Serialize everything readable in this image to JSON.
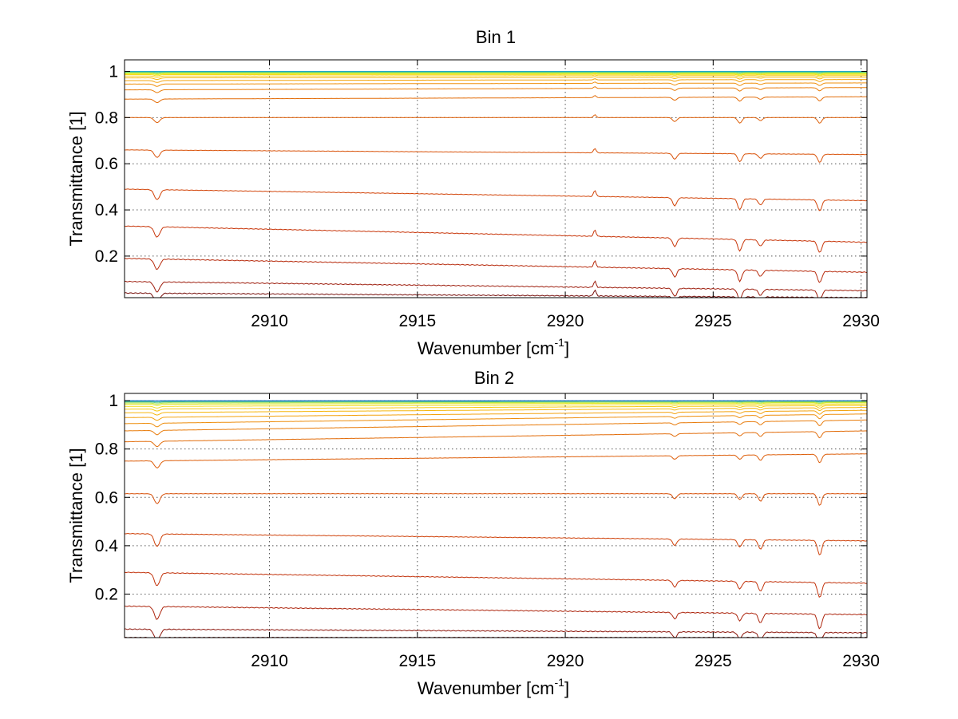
{
  "chart_data": [
    {
      "type": "line",
      "title": "Bin 1",
      "xlabel": "Wavenumber [cm",
      "xlabel_sup": "-1",
      "xlabel_tail": "]",
      "ylabel": "Transmittance [1]",
      "xlim": [
        2905.1,
        2930.2
      ],
      "ylim": [
        0.02,
        1.05
      ],
      "xticks": [
        2910,
        2915,
        2920,
        2925,
        2930
      ],
      "xtick_labels": [
        "2910",
        "2915",
        "2920",
        "2925",
        "2930"
      ],
      "yticks": [
        0.2,
        0.4,
        0.6,
        0.8,
        1
      ],
      "ytick_labels": [
        "0.2",
        "0.4",
        "0.6",
        "0.8",
        "1"
      ],
      "grid": true,
      "features": [
        {
          "x": 2906.2,
          "kind": "dip",
          "strength": 0.5,
          "width": 0.13
        },
        {
          "x": 2921.0,
          "kind": "peak",
          "strength": 0.3,
          "width": 0.06
        },
        {
          "x": 2923.7,
          "kind": "dip",
          "strength": 0.4,
          "width": 0.1
        },
        {
          "x": 2925.9,
          "kind": "dip",
          "strength": 0.55,
          "width": 0.1
        },
        {
          "x": 2926.6,
          "kind": "dip",
          "strength": 0.3,
          "width": 0.1
        },
        {
          "x": 2928.6,
          "kind": "dip",
          "strength": 0.55,
          "width": 0.1
        }
      ],
      "series": [
        {
          "start": 0.04,
          "end": 0.02,
          "color": "#7a1410"
        },
        {
          "start": 0.09,
          "end": 0.05,
          "color": "#9e1f0f"
        },
        {
          "start": 0.19,
          "end": 0.13,
          "color": "#b72a0c"
        },
        {
          "start": 0.33,
          "end": 0.26,
          "color": "#c8360a"
        },
        {
          "start": 0.49,
          "end": 0.44,
          "color": "#d24409"
        },
        {
          "start": 0.66,
          "end": 0.64,
          "color": "#d95209"
        },
        {
          "start": 0.8,
          "end": 0.8,
          "color": "#de600a"
        },
        {
          "start": 0.88,
          "end": 0.89,
          "color": "#e36e0b"
        },
        {
          "start": 0.92,
          "end": 0.93,
          "color": "#e97e0c"
        },
        {
          "start": 0.945,
          "end": 0.95,
          "color": "#ef900d"
        },
        {
          "start": 0.96,
          "end": 0.965,
          "color": "#f4a40e"
        },
        {
          "start": 0.972,
          "end": 0.975,
          "color": "#f7b810"
        },
        {
          "start": 0.98,
          "end": 0.982,
          "color": "#f9cc12"
        },
        {
          "start": 0.986,
          "end": 0.987,
          "color": "#f4dd18"
        },
        {
          "start": 0.99,
          "end": 0.99,
          "color": "#e6e923"
        },
        {
          "start": 0.993,
          "end": 0.993,
          "color": "#c2ea3a"
        },
        {
          "start": 0.996,
          "end": 0.996,
          "color": "#86dc6a"
        },
        {
          "start": 0.998,
          "end": 0.998,
          "color": "#3fc2a0"
        },
        {
          "start": 1.0,
          "end": 1.0,
          "color": "#1fa8c8"
        }
      ]
    },
    {
      "type": "line",
      "title": "Bin 2",
      "xlabel": "Wavenumber [cm",
      "xlabel_sup": "-1",
      "xlabel_tail": "]",
      "ylabel": "Transmittance [1]",
      "xlim": [
        2905.1,
        2930.2
      ],
      "ylim": [
        0.02,
        1.03
      ],
      "xticks": [
        2910,
        2915,
        2920,
        2925,
        2930
      ],
      "xtick_labels": [
        "2910",
        "2915",
        "2920",
        "2925",
        "2930"
      ],
      "yticks": [
        0.2,
        0.4,
        0.6,
        0.8,
        1
      ],
      "ytick_labels": [
        "0.2",
        "0.4",
        "0.6",
        "0.8",
        "1"
      ],
      "grid": true,
      "features": [
        {
          "x": 2906.2,
          "kind": "dip",
          "strength": 0.6,
          "width": 0.13
        },
        {
          "x": 2923.7,
          "kind": "dip",
          "strength": 0.3,
          "width": 0.1
        },
        {
          "x": 2925.9,
          "kind": "dip",
          "strength": 0.35,
          "width": 0.1
        },
        {
          "x": 2926.6,
          "kind": "dip",
          "strength": 0.45,
          "width": 0.1
        },
        {
          "x": 2928.6,
          "kind": "dip",
          "strength": 0.7,
          "width": 0.1
        }
      ],
      "series": [
        {
          "start": 0.02,
          "end": 0.02,
          "color": "#7a1410"
        },
        {
          "start": 0.055,
          "end": 0.04,
          "color": "#8f1a10"
        },
        {
          "start": 0.15,
          "end": 0.115,
          "color": "#ad250d"
        },
        {
          "start": 0.29,
          "end": 0.245,
          "color": "#c2320b"
        },
        {
          "start": 0.45,
          "end": 0.42,
          "color": "#cf4109"
        },
        {
          "start": 0.615,
          "end": 0.615,
          "color": "#d75009"
        },
        {
          "start": 0.75,
          "end": 0.78,
          "color": "#dd5e0a"
        },
        {
          "start": 0.83,
          "end": 0.875,
          "color": "#e26d0b"
        },
        {
          "start": 0.875,
          "end": 0.92,
          "color": "#e87c0c"
        },
        {
          "start": 0.905,
          "end": 0.945,
          "color": "#ee8e0d"
        },
        {
          "start": 0.93,
          "end": 0.96,
          "color": "#f3a20e"
        },
        {
          "start": 0.95,
          "end": 0.972,
          "color": "#f6b60f"
        },
        {
          "start": 0.965,
          "end": 0.98,
          "color": "#f8c911"
        },
        {
          "start": 0.976,
          "end": 0.986,
          "color": "#f3db18"
        },
        {
          "start": 0.985,
          "end": 0.991,
          "color": "#e2e827"
        },
        {
          "start": 0.99,
          "end": 0.994,
          "color": "#b8e745"
        },
        {
          "start": 0.994,
          "end": 0.997,
          "color": "#6fd17c"
        },
        {
          "start": 0.997,
          "end": 0.999,
          "color": "#2cb0b0"
        },
        {
          "start": 1.0,
          "end": 1.0,
          "color": "#1266c4"
        }
      ]
    }
  ]
}
